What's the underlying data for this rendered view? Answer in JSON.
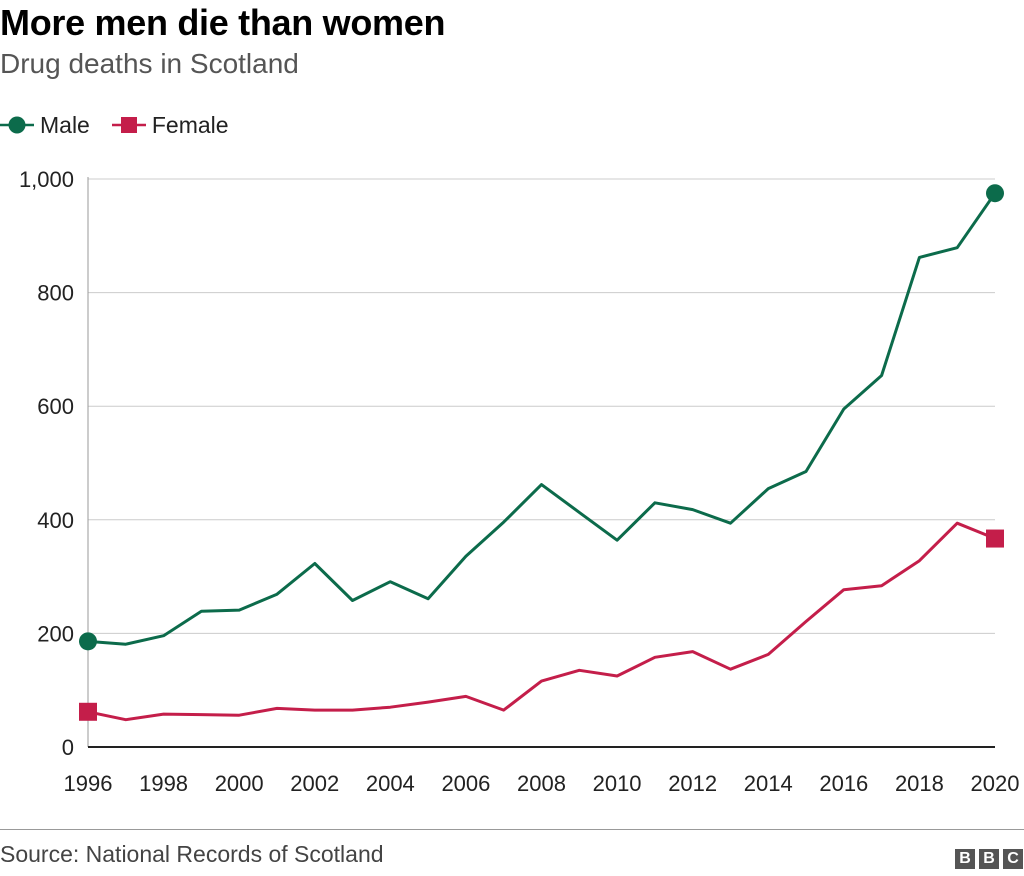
{
  "title": "More men die than women",
  "subtitle": "Drug deaths in Scotland",
  "source": "Source: National Records of Scotland",
  "logo": [
    "B",
    "B",
    "C"
  ],
  "chart_data": {
    "type": "line",
    "title": "More men die than women",
    "subtitle": "Drug deaths in Scotland",
    "xlabel": "",
    "ylabel": "",
    "x": [
      1996,
      1997,
      1998,
      1999,
      2000,
      2001,
      2002,
      2003,
      2004,
      2005,
      2006,
      2007,
      2008,
      2009,
      2010,
      2011,
      2012,
      2013,
      2014,
      2015,
      2016,
      2017,
      2018,
      2019,
      2020
    ],
    "xlim": [
      1996,
      2020
    ],
    "ylim": [
      0,
      1000
    ],
    "xticks": [
      "1996",
      "1998",
      "2000",
      "2002",
      "2004",
      "2006",
      "2008",
      "2010",
      "2012",
      "2014",
      "2016",
      "2018",
      "2020"
    ],
    "yticks": [
      "0",
      "200",
      "400",
      "600",
      "800",
      "1,000"
    ],
    "grid": "horizontal",
    "legend_position": "top-left",
    "series": [
      {
        "name": "Male",
        "color": "#0c6b4b",
        "marker": "circle",
        "values": [
          186,
          181,
          196,
          239,
          241,
          269,
          323,
          258,
          291,
          261,
          336,
          396,
          462,
          413,
          364,
          430,
          418,
          394,
          455,
          485,
          595,
          654,
          862,
          879,
          975
        ]
      },
      {
        "name": "Female",
        "color": "#c41e4a",
        "marker": "square",
        "values": [
          62,
          48,
          58,
          57,
          56,
          68,
          65,
          65,
          70,
          79,
          89,
          65,
          116,
          135,
          125,
          158,
          168,
          137,
          163,
          221,
          277,
          284,
          328,
          394,
          367
        ]
      }
    ]
  }
}
